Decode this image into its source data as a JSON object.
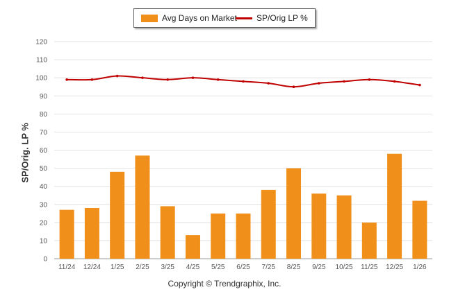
{
  "legend": {
    "bar_label": "Avg Days on Market",
    "line_label": "SP/Orig LP %"
  },
  "footer": {
    "copyright": "Copyright © Trendgraphix, Inc."
  },
  "chart_data": {
    "type": "bar",
    "title": "",
    "xlabel": "",
    "ylabel": "SP/Orig. LP %",
    "ylim": [
      0,
      120
    ],
    "yticks": [
      0,
      10,
      20,
      30,
      40,
      50,
      60,
      70,
      80,
      90,
      100,
      110,
      120
    ],
    "grid": true,
    "legend_position": "top-center",
    "categories": [
      "11/24",
      "12/24",
      "1/25",
      "2/25",
      "3/25",
      "4/25",
      "5/25",
      "6/25",
      "7/25",
      "8/25",
      "9/25",
      "10/25",
      "11/25",
      "12/25",
      "1/26"
    ],
    "series": [
      {
        "name": "Avg Days on Market",
        "type": "bar",
        "color": "#f0901a",
        "values": [
          27,
          28,
          48,
          57,
          29,
          13,
          25,
          25,
          38,
          50,
          36,
          35,
          20,
          58,
          32
        ]
      },
      {
        "name": "SP/Orig LP %",
        "type": "line",
        "color": "#c00000",
        "values": [
          99,
          99,
          101,
          100,
          99,
          100,
          99,
          98,
          97,
          95,
          97,
          98,
          99,
          98,
          96
        ]
      }
    ]
  }
}
